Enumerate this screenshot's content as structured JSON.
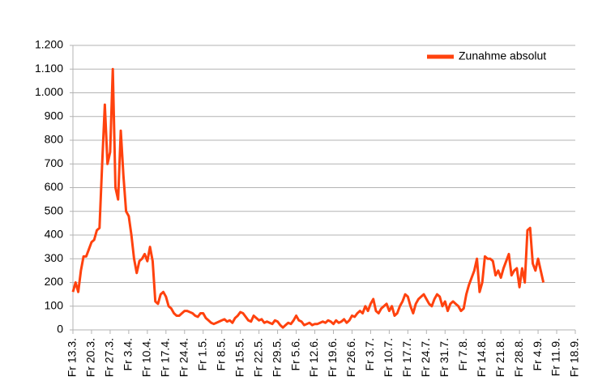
{
  "chart_data": {
    "type": "line",
    "categories": [
      "Fr 13.3.",
      null,
      null,
      null,
      null,
      null,
      null,
      "Fr 20.3.",
      null,
      null,
      null,
      null,
      null,
      null,
      "Fr 27.3.",
      null,
      null,
      null,
      null,
      null,
      null,
      "Fr 3.4.",
      null,
      null,
      null,
      null,
      null,
      null,
      "Fr 10.4.",
      null,
      null,
      null,
      null,
      null,
      null,
      "Fr 17.4.",
      null,
      null,
      null,
      null,
      null,
      null,
      "Fr 24.4.",
      null,
      null,
      null,
      null,
      null,
      null,
      "Fr 1.5.",
      null,
      null,
      null,
      null,
      null,
      null,
      "Fr 8.5.",
      null,
      null,
      null,
      null,
      null,
      null,
      "Fr 15.5.",
      null,
      null,
      null,
      null,
      null,
      null,
      "Fr 22.5.",
      null,
      null,
      null,
      null,
      null,
      null,
      "Fr 29.5.",
      null,
      null,
      null,
      null,
      null,
      null,
      "Fr 5.6.",
      null,
      null,
      null,
      null,
      null,
      null,
      "Fr 12.6.",
      null,
      null,
      null,
      null,
      null,
      null,
      "Fr 19.6.",
      null,
      null,
      null,
      null,
      null,
      null,
      "Fr 26.6.",
      null,
      null,
      null,
      null,
      null,
      null,
      "Fr 3.7.",
      null,
      null,
      null,
      null,
      null,
      null,
      "Fr 10.7.",
      null,
      null,
      null,
      null,
      null,
      null,
      "Fr 17.7.",
      null,
      null,
      null,
      null,
      null,
      null,
      "Fr 24.7.",
      null,
      null,
      null,
      null,
      null,
      null,
      "Fr 31.7.",
      null,
      null,
      null,
      null,
      null,
      null,
      "Fr 7.8.",
      null,
      null,
      null,
      null,
      null,
      null,
      "Fr 14.8.",
      null,
      null,
      null,
      null,
      null,
      null,
      "Fr 21.8.",
      null,
      null,
      null,
      null,
      null,
      null,
      "Fr 28.8.",
      null,
      null,
      null,
      null,
      null,
      null,
      "Fr 4.9.",
      null,
      null,
      null,
      null,
      null,
      null,
      "Fr 11.9.",
      null,
      null,
      null,
      null,
      null,
      null,
      "Fr 18.9."
    ],
    "series": [
      {
        "name": "Zunahme absolut",
        "color": "#ff420e",
        "values": [
          160,
          200,
          160,
          250,
          310,
          310,
          340,
          370,
          380,
          420,
          430,
          700,
          950,
          700,
          750,
          1100,
          600,
          550,
          840,
          650,
          500,
          480,
          400,
          300,
          240,
          290,
          300,
          320,
          290,
          350,
          290,
          120,
          110,
          150,
          160,
          140,
          100,
          90,
          70,
          60,
          60,
          70,
          80,
          80,
          75,
          70,
          60,
          55,
          70,
          70,
          50,
          40,
          30,
          25,
          30,
          35,
          40,
          45,
          35,
          40,
          30,
          50,
          60,
          75,
          70,
          55,
          40,
          35,
          60,
          50,
          40,
          45,
          30,
          35,
          30,
          25,
          40,
          35,
          20,
          10,
          20,
          30,
          25,
          40,
          60,
          40,
          35,
          20,
          25,
          30,
          20,
          25,
          25,
          30,
          35,
          30,
          40,
          35,
          25,
          40,
          30,
          35,
          45,
          30,
          40,
          60,
          55,
          70,
          80,
          70,
          100,
          80,
          110,
          130,
          80,
          70,
          90,
          100,
          110,
          80,
          100,
          60,
          70,
          100,
          120,
          150,
          140,
          100,
          70,
          110,
          130,
          140,
          150,
          130,
          110,
          100,
          130,
          150,
          140,
          100,
          120,
          80,
          110,
          120,
          110,
          100,
          80,
          90,
          150,
          190,
          220,
          250,
          300,
          160,
          200,
          310,
          300,
          300,
          290,
          230,
          250,
          220,
          260,
          290,
          320,
          230,
          250,
          260,
          180,
          260,
          200,
          420,
          430,
          280,
          250,
          300,
          250,
          200,
          null,
          null,
          null,
          null,
          null,
          null,
          null,
          null,
          null,
          null,
          null,
          null
        ]
      }
    ],
    "ylim": [
      0,
      1200
    ],
    "yticks": [
      0,
      100,
      200,
      300,
      400,
      500,
      600,
      700,
      800,
      900,
      {
        "value": 1000,
        "label": "1.000"
      },
      {
        "value": 1100,
        "label": "1.100"
      },
      {
        "value": 1200,
        "label": "1.200"
      }
    ],
    "grid": true,
    "legend": "top-right"
  }
}
